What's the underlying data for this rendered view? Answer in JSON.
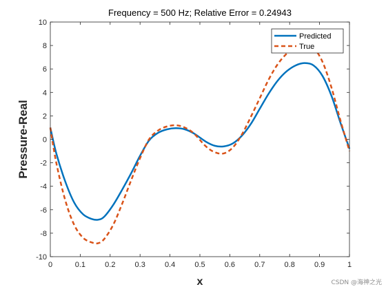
{
  "chart_data": {
    "type": "line",
    "title": "Frequency = 500 Hz; Relative Error = 0.24943",
    "xlabel": "x",
    "ylabel": "Pressure-Real",
    "xlim": [
      0,
      1
    ],
    "ylim": [
      -10,
      10
    ],
    "xticks": [
      0,
      0.1,
      0.2,
      0.3,
      0.4,
      0.5,
      0.6,
      0.7,
      0.8,
      0.9,
      1
    ],
    "yticks": [
      -10,
      -8,
      -6,
      -4,
      -2,
      0,
      2,
      4,
      6,
      8,
      10
    ],
    "xtick_labels": [
      "0",
      "0.1",
      "0.2",
      "0.3",
      "0.4",
      "0.5",
      "0.6",
      "0.7",
      "0.8",
      "0.9",
      "1"
    ],
    "ytick_labels": [
      "-10",
      "-8",
      "-6",
      "-4",
      "-2",
      "0",
      "2",
      "4",
      "6",
      "8",
      "10"
    ],
    "grid": false,
    "legend_position": "top-right",
    "series": [
      {
        "name": "Predicted",
        "color": "#0072BD",
        "style": "solid",
        "x": [
          0,
          0.02,
          0.05,
          0.08,
          0.11,
          0.14,
          0.16,
          0.18,
          0.21,
          0.24,
          0.27,
          0.3,
          0.33,
          0.36,
          0.39,
          0.42,
          0.45,
          0.48,
          0.52,
          0.55,
          0.58,
          0.61,
          0.64,
          0.67,
          0.7,
          0.73,
          0.76,
          0.79,
          0.82,
          0.85,
          0.88,
          0.91,
          0.94,
          0.97,
          1
        ],
        "y": [
          1.0,
          -1.2,
          -3.6,
          -5.4,
          -6.4,
          -6.8,
          -6.85,
          -6.6,
          -5.6,
          -4.3,
          -2.9,
          -1.4,
          -0.1,
          0.55,
          0.85,
          0.95,
          0.85,
          0.5,
          -0.2,
          -0.55,
          -0.6,
          -0.35,
          0.3,
          1.3,
          2.6,
          3.9,
          5.0,
          5.8,
          6.3,
          6.5,
          6.3,
          5.4,
          3.7,
          1.4,
          -0.8
        ]
      },
      {
        "name": "True",
        "color": "#D95319",
        "style": "dashed",
        "x": [
          0,
          0.02,
          0.05,
          0.08,
          0.11,
          0.14,
          0.16,
          0.18,
          0.21,
          0.24,
          0.27,
          0.3,
          0.33,
          0.36,
          0.39,
          0.42,
          0.45,
          0.48,
          0.52,
          0.55,
          0.58,
          0.61,
          0.64,
          0.67,
          0.7,
          0.73,
          0.76,
          0.79,
          0.82,
          0.85,
          0.88,
          0.91,
          0.94,
          0.97,
          1
        ],
        "y": [
          1.0,
          -2.0,
          -5.2,
          -7.3,
          -8.4,
          -8.8,
          -8.85,
          -8.5,
          -7.3,
          -5.5,
          -3.5,
          -1.6,
          0.0,
          0.75,
          1.1,
          1.2,
          1.0,
          0.5,
          -0.6,
          -1.1,
          -1.2,
          -0.7,
          0.4,
          1.9,
          3.5,
          5.1,
          6.4,
          7.3,
          7.9,
          8.1,
          7.8,
          6.6,
          4.4,
          1.6,
          -1.0
        ]
      }
    ]
  },
  "watermark": "CSDN @海神之光"
}
